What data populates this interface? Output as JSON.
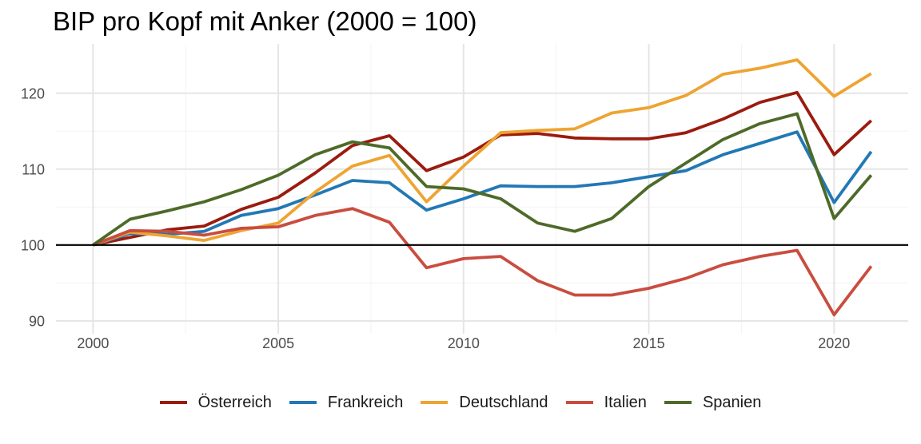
{
  "chart_data": {
    "type": "line",
    "title": "BIP pro Kopf mit Anker (2000 = 100)",
    "xlabel": "",
    "ylabel": "",
    "x": [
      2000,
      2001,
      2002,
      2003,
      2004,
      2005,
      2006,
      2007,
      2008,
      2009,
      2010,
      2011,
      2012,
      2013,
      2014,
      2015,
      2016,
      2017,
      2018,
      2019,
      2020,
      2021
    ],
    "xlim": [
      1999,
      2022
    ],
    "ylim": [
      88.3,
      126.5
    ],
    "xticks": [
      2000,
      2005,
      2010,
      2015,
      2020
    ],
    "yticks": [
      90,
      100,
      110,
      120
    ],
    "reference_line": 100,
    "grid": true,
    "legend_position": "bottom",
    "series": [
      {
        "name": "Österreich",
        "color": "#9B1B0F",
        "values": [
          100,
          101.0,
          102.0,
          102.5,
          104.7,
          106.3,
          109.5,
          113.1,
          114.4,
          109.8,
          111.6,
          114.5,
          114.7,
          114.1,
          114.0,
          114.0,
          114.8,
          116.6,
          118.8,
          120.1,
          111.9,
          116.4
        ]
      },
      {
        "name": "Frankreich",
        "color": "#2278B5",
        "values": [
          100,
          101.5,
          101.4,
          101.8,
          103.9,
          104.8,
          106.6,
          108.5,
          108.2,
          104.6,
          106.1,
          107.8,
          107.7,
          107.7,
          108.2,
          109.0,
          109.8,
          111.9,
          113.4,
          114.9,
          105.6,
          112.3
        ]
      },
      {
        "name": "Deutschland",
        "color": "#EEA432",
        "values": [
          100,
          101.7,
          101.2,
          100.6,
          101.9,
          102.9,
          107.0,
          110.4,
          111.8,
          105.7,
          110.4,
          114.8,
          115.1,
          115.3,
          117.4,
          118.1,
          119.7,
          122.5,
          123.3,
          124.4,
          119.6,
          122.6
        ]
      },
      {
        "name": "Italien",
        "color": "#C94D3F",
        "values": [
          100,
          101.9,
          101.8,
          101.3,
          102.2,
          102.4,
          103.9,
          104.8,
          103.0,
          97.0,
          98.2,
          98.5,
          95.3,
          93.4,
          93.4,
          94.3,
          95.6,
          97.4,
          98.5,
          99.3,
          90.8,
          97.2
        ]
      },
      {
        "name": "Spanien",
        "color": "#4D6A28",
        "values": [
          100,
          103.4,
          104.5,
          105.7,
          107.3,
          109.2,
          111.9,
          113.6,
          112.8,
          107.7,
          107.4,
          106.1,
          102.9,
          101.8,
          103.5,
          107.7,
          110.8,
          113.9,
          116.0,
          117.3,
          103.5,
          109.2
        ]
      }
    ]
  }
}
